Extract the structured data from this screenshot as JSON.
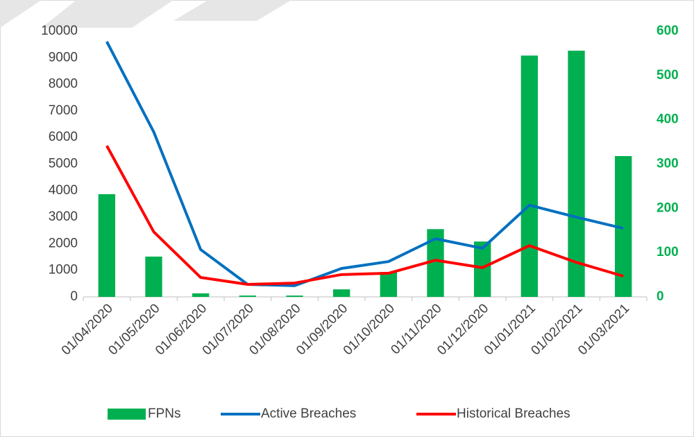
{
  "chart_data": {
    "type": "bar_line",
    "categories": [
      "01/04/2020",
      "01/05/2020",
      "01/06/2020",
      "01/07/2020",
      "01/08/2020",
      "01/09/2020",
      "01/10/2020",
      "01/11/2020",
      "01/12/2020",
      "01/01/2021",
      "01/02/2021",
      "01/03/2021"
    ],
    "series": [
      {
        "name": "FPNs",
        "type": "bar",
        "axis": "y2",
        "color": "#00b050",
        "values": [
          232,
          91,
          8,
          3,
          3,
          17,
          56,
          153,
          125,
          545,
          556,
          318
        ]
      },
      {
        "name": "Active Breaches",
        "type": "line",
        "color": "#0070c0",
        "values": [
          9610,
          6210,
          1780,
          470,
          420,
          1070,
          1330,
          2190,
          1830,
          3450,
          3000,
          2580
        ]
      },
      {
        "name": "Historical Breaches",
        "type": "line",
        "color": "#ff0000",
        "values": [
          5690,
          2450,
          730,
          470,
          520,
          840,
          890,
          1380,
          1100,
          1930,
          1300,
          780
        ]
      }
    ],
    "ylim": [
      0,
      10000
    ],
    "yticks": [
      0,
      1000,
      2000,
      3000,
      4000,
      5000,
      6000,
      7000,
      8000,
      9000,
      10000
    ],
    "y2lim": [
      0,
      600
    ],
    "y2ticks": [
      0,
      100,
      200,
      300,
      400,
      500,
      600
    ],
    "y2color": "#00b050",
    "legend": "bottom"
  }
}
